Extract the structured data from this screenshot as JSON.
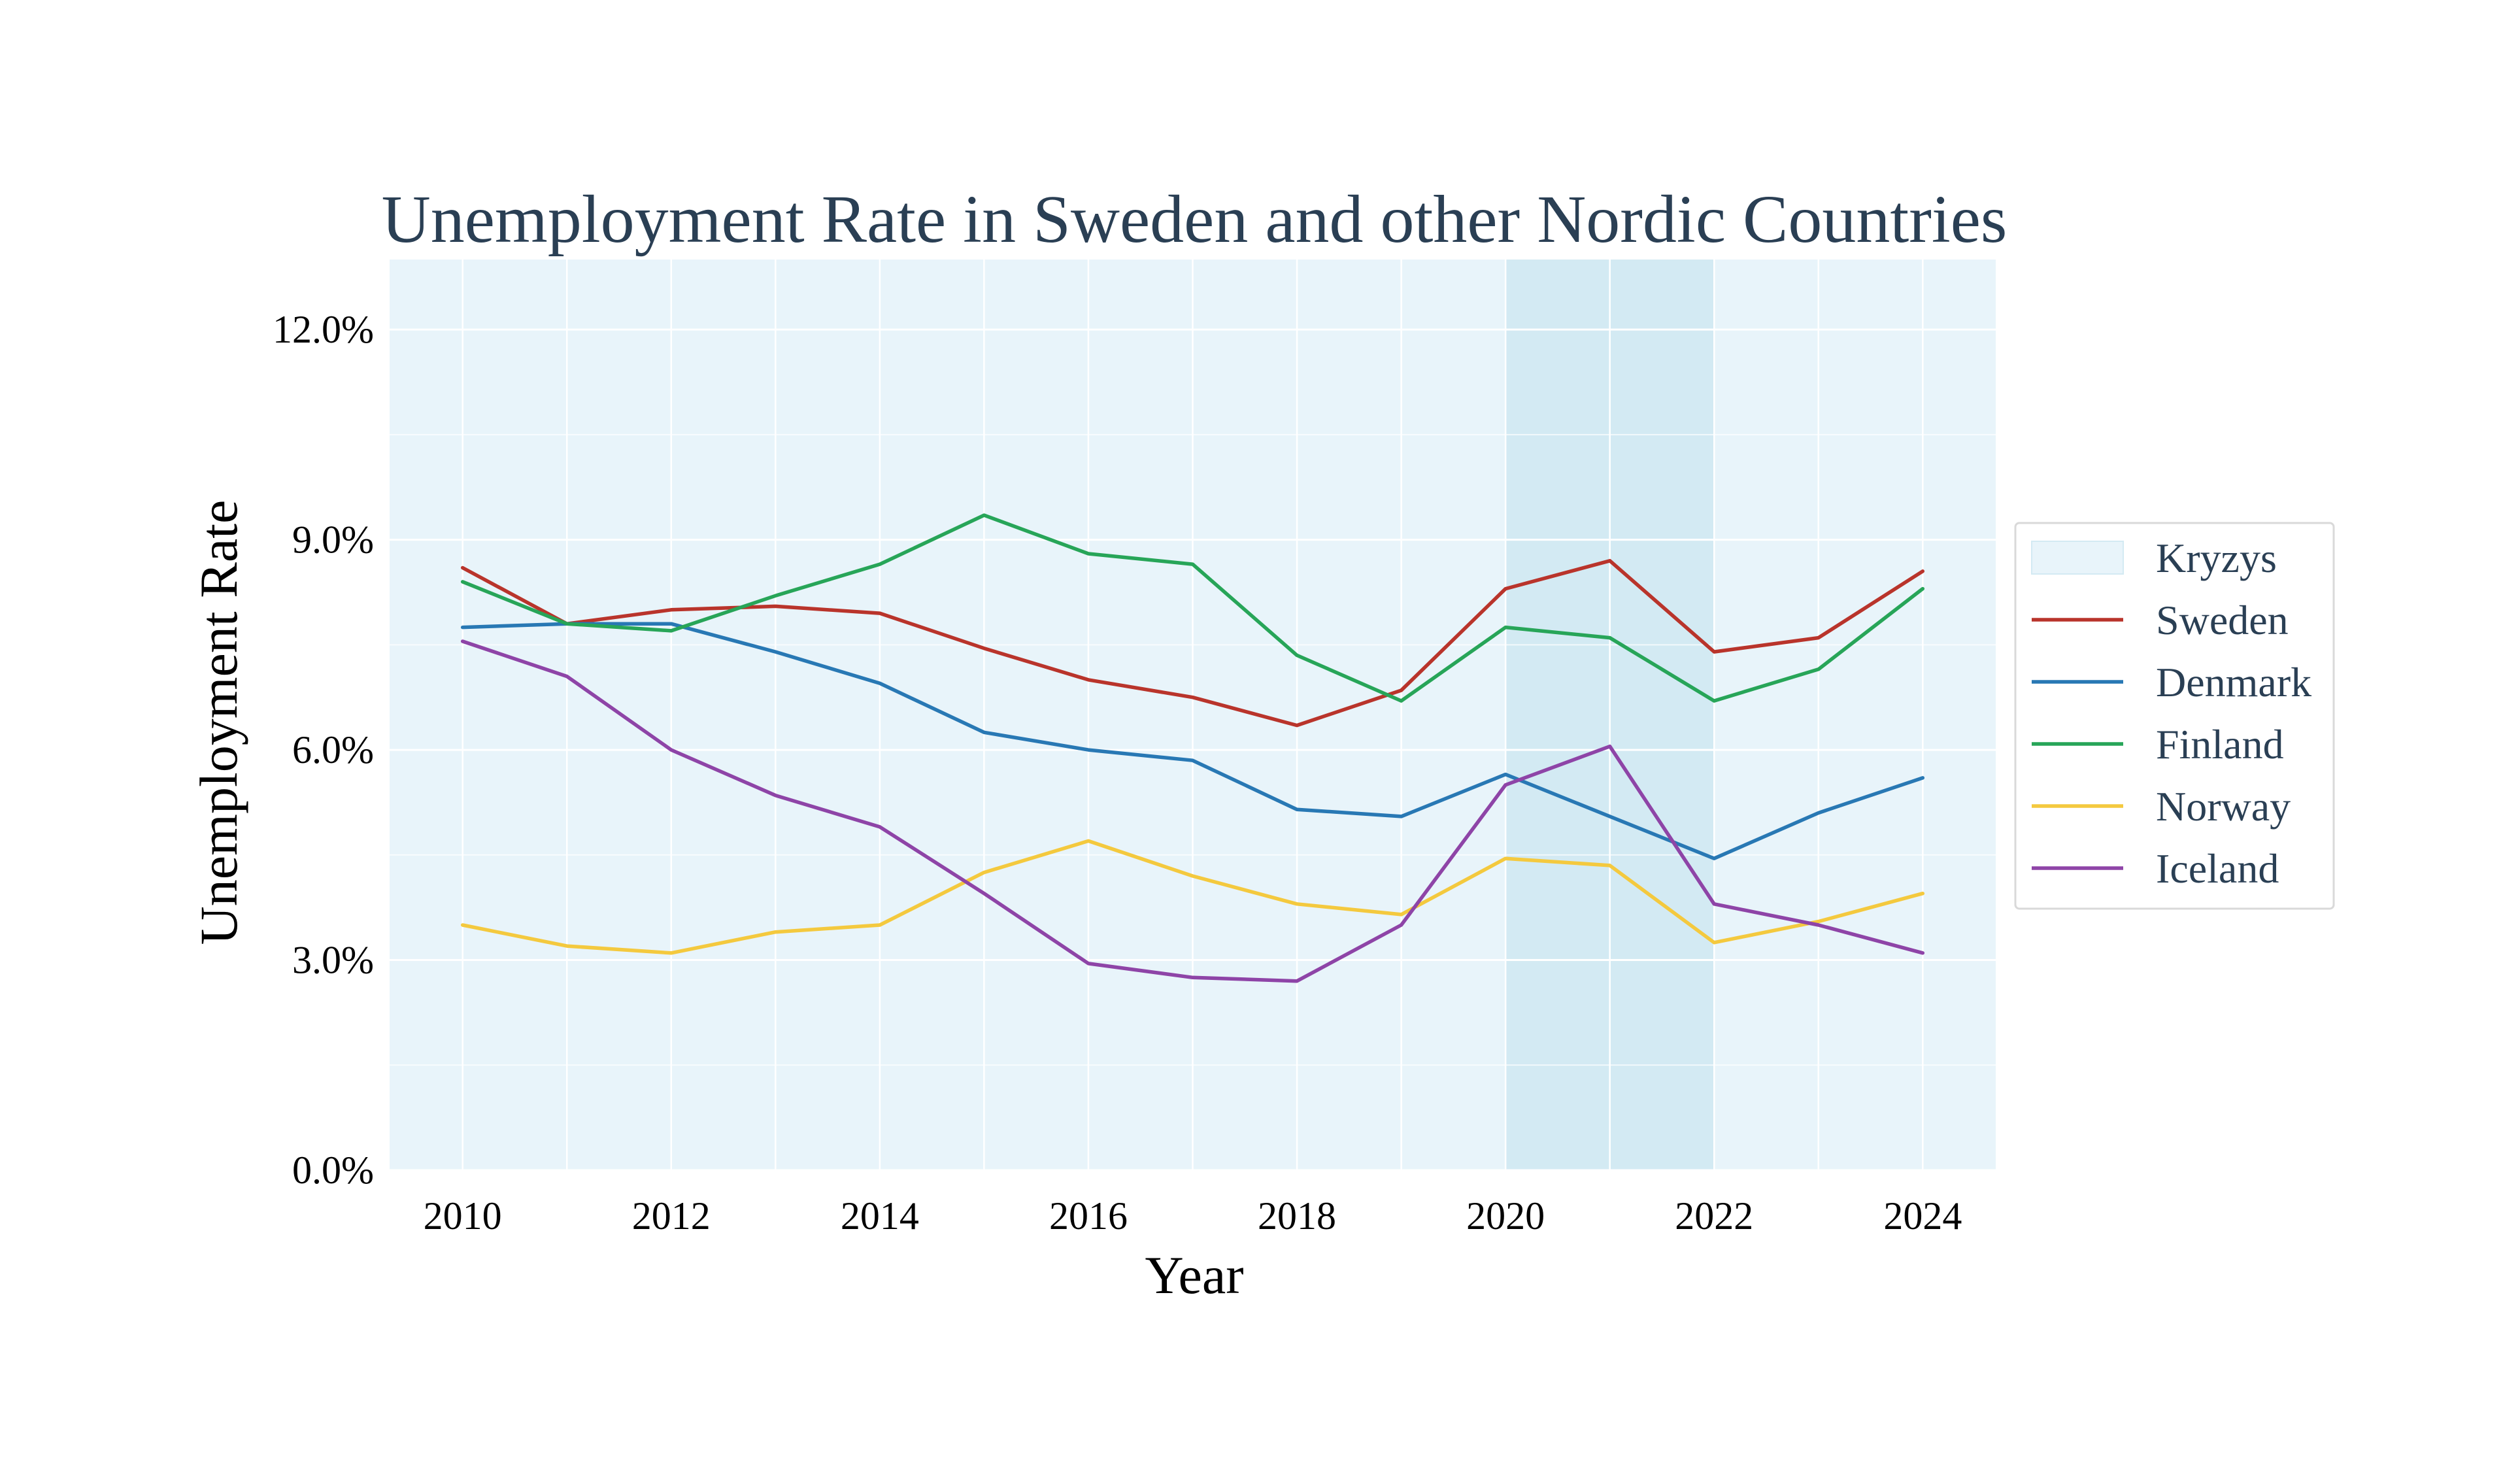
{
  "chart_data": {
    "type": "line",
    "title": "Unemployment Rate in Sweden and other Nordic Countries",
    "xlabel": "Year",
    "ylabel": "Unemployment Rate",
    "x": [
      2010,
      2011,
      2012,
      2013,
      2014,
      2015,
      2016,
      2017,
      2018,
      2019,
      2020,
      2021,
      2022,
      2023,
      2024
    ],
    "xlim": [
      2009.3,
      2024.7
    ],
    "ylim": [
      0,
      13
    ],
    "x_ticks": [
      2010,
      2012,
      2014,
      2016,
      2018,
      2020,
      2022,
      2024
    ],
    "x_tick_labels": [
      "2010",
      "2012",
      "2014",
      "2016",
      "2018",
      "2020",
      "2022",
      "2024"
    ],
    "y_ticks": [
      0,
      3,
      6,
      9,
      12
    ],
    "y_tick_labels": [
      "0.0%",
      "3.0%",
      "6.0%",
      "9.0%",
      "12.0%"
    ],
    "y_minor_grid": [
      1.5,
      4.5,
      7.5,
      10.5
    ],
    "grid": true,
    "legend_position": "right",
    "plot_background": "#e8f4fa",
    "shaded_region": {
      "name": "Kryzys",
      "x_start": 2020,
      "x_end": 2022,
      "color": "#d3eaf3"
    },
    "series": [
      {
        "name": "Sweden",
        "color": "#b9342b",
        "values": [
          8.6,
          7.8,
          8.0,
          8.05,
          7.95,
          7.45,
          7.0,
          6.75,
          6.35,
          6.85,
          8.3,
          8.7,
          7.4,
          7.6,
          8.55
        ]
      },
      {
        "name": "Denmark",
        "color": "#2878b4",
        "values": [
          7.75,
          7.8,
          7.8,
          7.4,
          6.95,
          6.25,
          6.0,
          5.85,
          5.15,
          5.05,
          5.65,
          5.05,
          4.45,
          5.1,
          5.6
        ]
      },
      {
        "name": "Finland",
        "color": "#27a558",
        "values": [
          8.4,
          7.8,
          7.7,
          8.2,
          8.65,
          9.35,
          8.8,
          8.65,
          7.35,
          6.7,
          7.75,
          7.6,
          6.7,
          7.15,
          8.3
        ]
      },
      {
        "name": "Norway",
        "color": "#f4c93e",
        "values": [
          3.5,
          3.2,
          3.1,
          3.4,
          3.5,
          4.25,
          4.7,
          4.2,
          3.8,
          3.65,
          4.45,
          4.35,
          3.25,
          3.55,
          3.95
        ]
      },
      {
        "name": "Iceland",
        "color": "#8e44a7",
        "values": [
          7.55,
          7.05,
          6.0,
          5.35,
          4.9,
          3.95,
          2.95,
          2.75,
          2.7,
          3.5,
          5.5,
          6.05,
          3.8,
          3.5,
          3.1
        ]
      }
    ]
  }
}
